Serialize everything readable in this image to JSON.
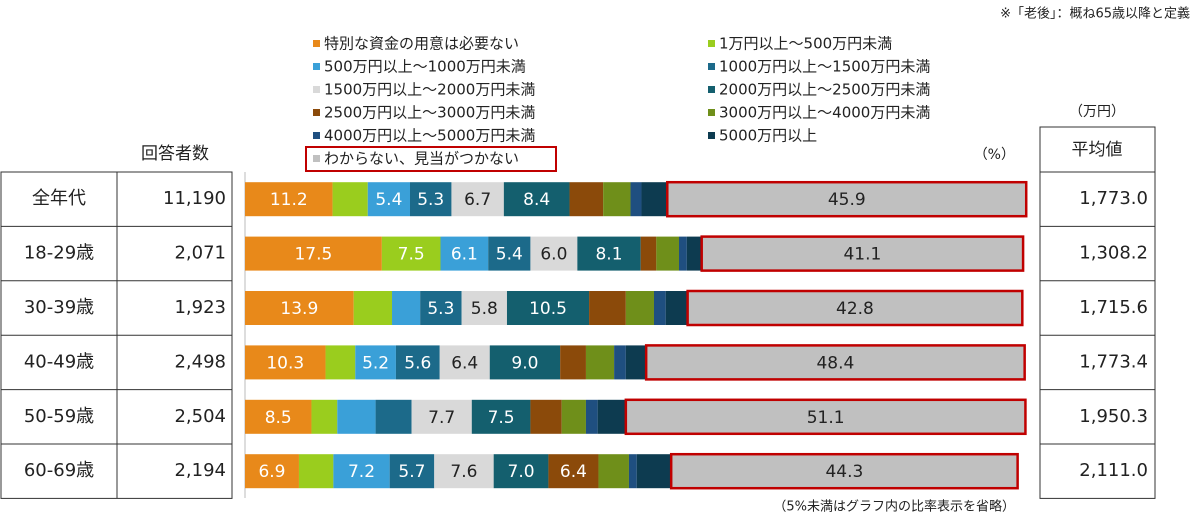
{
  "chart_data": {
    "type": "stacked-bar",
    "note": "※「老後」：概ね65歳以降と定義",
    "unit_label": "（%）",
    "footnote": "（5%未満はグラフ内の比率表示を省略）",
    "categories": [
      "全年代",
      "18-29歳",
      "30-39歳",
      "40-49歳",
      "50-59歳",
      "60-69歳"
    ],
    "series": [
      {
        "name": "特別な資金の用意は必要ない",
        "color": "#e8891a",
        "values": [
          11.2,
          17.5,
          13.9,
          10.3,
          8.5,
          6.9
        ],
        "value_labels": [
          "11.2",
          "17.5",
          "13.9",
          "10.3",
          "8.5",
          "6.9"
        ]
      },
      {
        "name": "1万円以上～500万円未満",
        "color": "#9acd1e",
        "values": [
          4.5,
          7.5,
          4.9,
          3.8,
          3.3,
          4.4
        ],
        "value_labels": [
          null,
          "7.5",
          null,
          null,
          null,
          null
        ]
      },
      {
        "name": "500万円以上～1000万円未満",
        "color": "#3aa0d8",
        "values": [
          5.4,
          6.1,
          3.6,
          5.2,
          4.9,
          7.2
        ],
        "value_labels": [
          "5.4",
          "6.1",
          null,
          "5.2",
          null,
          "7.2"
        ]
      },
      {
        "name": "1000万円以上～1500万円未満",
        "color": "#1c6a8a",
        "values": [
          5.3,
          5.4,
          5.3,
          5.6,
          4.6,
          5.7
        ],
        "value_labels": [
          "5.3",
          "5.4",
          "5.3",
          "5.6",
          null,
          "5.7"
        ]
      },
      {
        "name": "1500万円以上～2000万円未満",
        "color": "#d9d9d9",
        "values": [
          6.7,
          6.0,
          5.8,
          6.4,
          7.7,
          7.6
        ],
        "value_labels": [
          "6.7",
          "6.0",
          "5.8",
          "6.4",
          "7.7",
          "7.6"
        ]
      },
      {
        "name": "2000万円以上～2500万円未満",
        "color": "#145f6e",
        "values": [
          8.4,
          8.1,
          10.5,
          9.0,
          7.5,
          7.0
        ],
        "value_labels": [
          "8.4",
          "8.1",
          "10.5",
          "9.0",
          "7.5",
          "7.0"
        ]
      },
      {
        "name": "2500万円以上～3000万円未満",
        "color": "#8b4a0a",
        "values": [
          4.3,
          2.0,
          4.7,
          3.3,
          4.0,
          6.4
        ],
        "value_labels": [
          null,
          null,
          null,
          null,
          null,
          "6.4"
        ]
      },
      {
        "name": "3000万円以上～4000万円未満",
        "color": "#6f8f1a",
        "values": [
          3.5,
          2.9,
          3.6,
          3.6,
          3.1,
          3.9
        ],
        "value_labels": [
          null,
          null,
          null,
          null,
          null,
          null
        ]
      },
      {
        "name": "4000万円以上～5000万円未満",
        "color": "#1f4f80",
        "values": [
          1.4,
          1.0,
          1.5,
          1.5,
          1.5,
          1.0
        ],
        "value_labels": [
          null,
          null,
          null,
          null,
          null,
          null
        ]
      },
      {
        "name": "5000万円以上",
        "color": "#0d3b50",
        "values": [
          3.3,
          1.9,
          2.8,
          2.6,
          3.6,
          4.4
        ],
        "value_labels": [
          null,
          null,
          null,
          null,
          null,
          null
        ]
      },
      {
        "name": "わからない、見当がつかない",
        "color": "#c0c0c0",
        "values": [
          45.9,
          41.1,
          42.8,
          48.4,
          51.1,
          44.3
        ],
        "value_labels": [
          "45.9",
          "41.1",
          "42.8",
          "48.4",
          "51.1",
          "44.3"
        ]
      }
    ]
  },
  "table": {
    "respondents_header": "回答者数",
    "respondents": [
      "11,190",
      "2,071",
      "1,923",
      "2,498",
      "2,504",
      "2,194"
    ],
    "average_unit": "（万円）",
    "average_header": "平均値",
    "averages": [
      "1,773.0",
      "1,308.2",
      "1,715.6",
      "1,773.4",
      "1,950.3",
      "2,111.0"
    ]
  }
}
